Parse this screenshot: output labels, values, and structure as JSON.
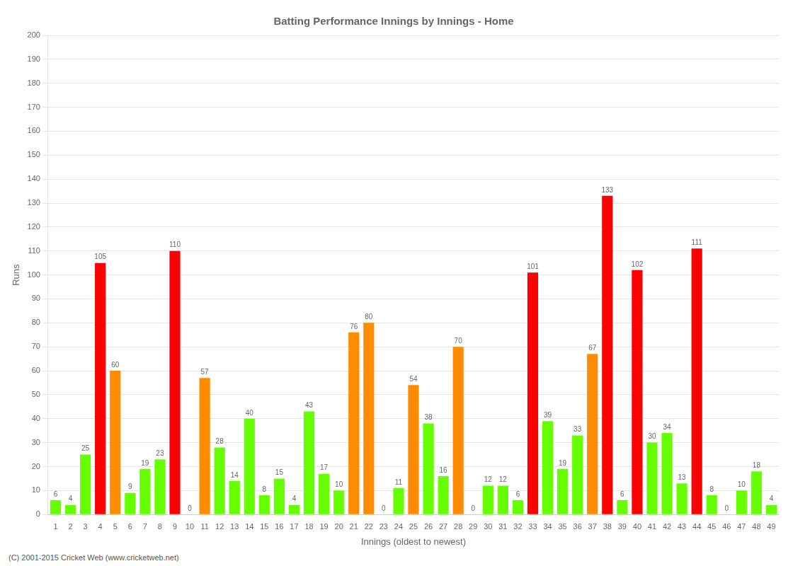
{
  "chart_data": {
    "type": "bar",
    "title": "Batting Performance Innings by Innings - Home",
    "xlabel": "Innings (oldest to newest)",
    "ylabel": "Runs",
    "footer": "(C) 2001-2015 Cricket Web (www.cricketweb.net)",
    "categories": [
      "1",
      "2",
      "3",
      "4",
      "5",
      "6",
      "7",
      "8",
      "9",
      "10",
      "11",
      "12",
      "13",
      "14",
      "15",
      "16",
      "17",
      "18",
      "19",
      "20",
      "21",
      "22",
      "23",
      "24",
      "25",
      "26",
      "27",
      "28",
      "29",
      "30",
      "31",
      "32",
      "33",
      "34",
      "35",
      "36",
      "37",
      "38",
      "39",
      "40",
      "41",
      "42",
      "43",
      "44",
      "45",
      "46",
      "47",
      "48",
      "49"
    ],
    "values": [
      6,
      4,
      25,
      105,
      60,
      9,
      19,
      23,
      110,
      0,
      57,
      28,
      14,
      40,
      8,
      15,
      4,
      43,
      17,
      10,
      76,
      80,
      0,
      11,
      54,
      38,
      16,
      70,
      0,
      12,
      12,
      6,
      101,
      39,
      19,
      33,
      67,
      133,
      6,
      102,
      30,
      34,
      13,
      111,
      8,
      0,
      10,
      18,
      4
    ],
    "colors": [
      "#66FF00",
      "#66FF00",
      "#66FF00",
      "#FF0000",
      "#FF8C00",
      "#66FF00",
      "#66FF00",
      "#66FF00",
      "#FF0000",
      "#66FF00",
      "#FF8C00",
      "#66FF00",
      "#66FF00",
      "#66FF00",
      "#66FF00",
      "#66FF00",
      "#66FF00",
      "#66FF00",
      "#66FF00",
      "#66FF00",
      "#FF8C00",
      "#FF8C00",
      "#66FF00",
      "#66FF00",
      "#FF8C00",
      "#66FF00",
      "#66FF00",
      "#FF8C00",
      "#66FF00",
      "#66FF00",
      "#66FF00",
      "#66FF00",
      "#FF0000",
      "#66FF00",
      "#66FF00",
      "#66FF00",
      "#FF8C00",
      "#FF0000",
      "#66FF00",
      "#FF0000",
      "#66FF00",
      "#66FF00",
      "#66FF00",
      "#FF0000",
      "#66FF00",
      "#66FF00",
      "#66FF00",
      "#66FF00",
      "#66FF00"
    ],
    "data_labels": true,
    "ylim": [
      0,
      200
    ],
    "yticks": [
      0,
      10,
      20,
      30,
      40,
      50,
      60,
      70,
      80,
      90,
      100,
      110,
      120,
      130,
      140,
      150,
      160,
      170,
      180,
      190,
      200
    ],
    "grid": true
  }
}
